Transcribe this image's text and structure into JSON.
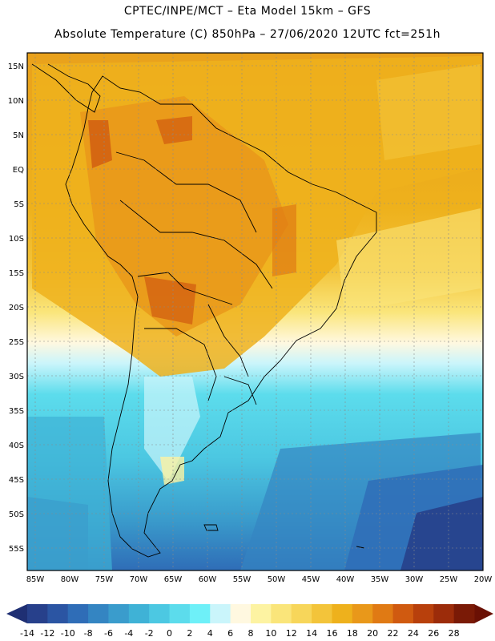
{
  "header": {
    "line1": "CPTEC/INPE/MCT –  Eta Model 15km – GFS",
    "line2": "Absolute Temperature (C) 850hPa – 27/06/2020 12UTC fct=251h"
  },
  "axes": {
    "lat_labels": [
      "15N",
      "10N",
      "5N",
      "EQ",
      "5S",
      "10S",
      "15S",
      "20S",
      "25S",
      "30S",
      "35S",
      "40S",
      "45S",
      "50S",
      "55S"
    ],
    "lat_values": [
      15,
      10,
      5,
      0,
      -5,
      -10,
      -15,
      -20,
      -25,
      -30,
      -35,
      -40,
      -45,
      -50,
      -55
    ],
    "lon_labels": [
      "85W",
      "80W",
      "75W",
      "70W",
      "65W",
      "60W",
      "55W",
      "50W",
      "45W",
      "40W",
      "35W",
      "30W",
      "25W",
      "20W"
    ],
    "lon_values": [
      -85,
      -80,
      -75,
      -70,
      -65,
      -60,
      -55,
      -50,
      -45,
      -40,
      -35,
      -30,
      -25,
      -20
    ]
  },
  "colorbar": {
    "labels": [
      "-14",
      "-12",
      "-10",
      "-8",
      "-6",
      "-4",
      "-2",
      "0",
      "2",
      "4",
      "6",
      "8",
      "10",
      "12",
      "14",
      "16",
      "18",
      "20",
      "22",
      "24",
      "26",
      "28"
    ],
    "colors": [
      "#27408b",
      "#2b55a3",
      "#2f6db7",
      "#3485c2",
      "#3a9ccc",
      "#3fb2d6",
      "#4cc8e2",
      "#5cdcec",
      "#6ef0f8",
      "#caf5fb",
      "#fff8e0",
      "#fdf3a2",
      "#fae57a",
      "#f7d65a",
      "#f3c43a",
      "#eeb11c",
      "#e9981a",
      "#e07a14",
      "#d05a10",
      "#b8400c",
      "#9c2c0a",
      "#7a1a06"
    ],
    "left_arrow_color": "#1f2f73",
    "right_arrow_color": "#6a1004"
  }
}
